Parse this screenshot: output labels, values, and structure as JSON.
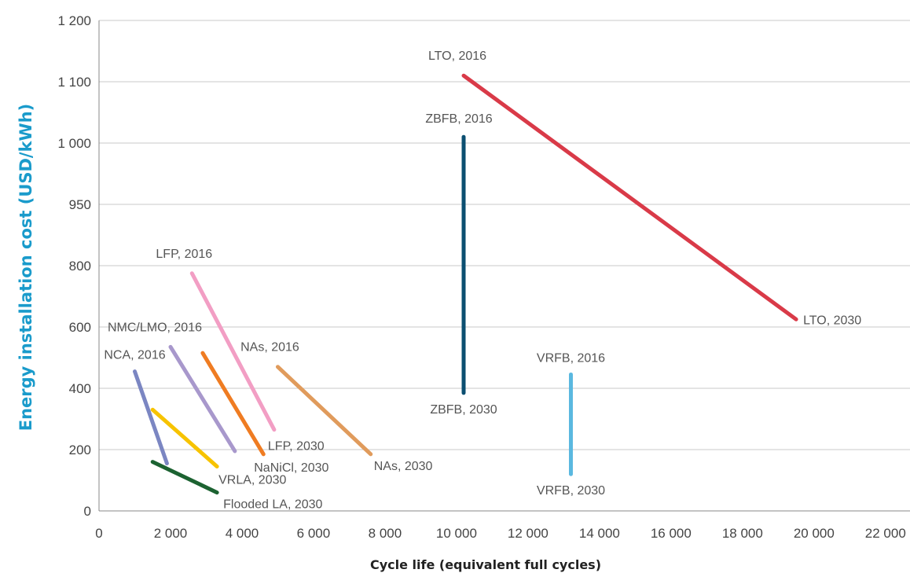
{
  "chart_data": {
    "type": "line",
    "title": "",
    "xlabel": "Cycle life (equivalent full cycles)",
    "ylabel": "Energy installation cost (USD/kWh)",
    "xlim": [
      0,
      22000
    ],
    "y_ticks": [
      0,
      200,
      400,
      600,
      800,
      950,
      1000,
      1100,
      1200
    ],
    "y_tick_labels": [
      "0",
      "200",
      "400",
      "600",
      "800",
      "950",
      "1 000",
      "1 100",
      "1 200"
    ],
    "x_ticks": [
      0,
      2000,
      4000,
      6000,
      8000,
      10000,
      12000,
      14000,
      16000,
      18000,
      20000,
      22000
    ],
    "x_tick_labels": [
      "0",
      "2 000",
      "4 000",
      "6 000",
      "8 000",
      "10 000",
      "12 000",
      "14 000",
      "16 000",
      "18 000",
      "20 000",
      "22 000"
    ],
    "grid": true,
    "series": [
      {
        "key": "lto",
        "color": "#d93a48",
        "start_label": "LTO, 2016",
        "end_label": "LTO, 2030",
        "x": [
          10200,
          19500
        ],
        "y": [
          1110,
          625
        ]
      },
      {
        "key": "zbfb",
        "color": "#0b4f71",
        "start_label": "ZBFB, 2016",
        "end_label": "ZBFB, 2030",
        "x": [
          10200,
          10200
        ],
        "y": [
          1010,
          385
        ]
      },
      {
        "key": "vrfb",
        "color": "#5ab8e0",
        "start_label": "VRFB, 2016",
        "end_label": "VRFB, 2030",
        "x": [
          13200,
          13200
        ],
        "y": [
          445,
          120
        ]
      },
      {
        "key": "nas",
        "color": "#e09b5c",
        "start_label": "NAs, 2016",
        "end_label": "NAs, 2030",
        "x": [
          5000,
          7600
        ],
        "y": [
          470,
          185
        ]
      },
      {
        "key": "lfp",
        "color": "#f29ec4",
        "start_label": "LFP, 2016",
        "end_label": "LFP, 2030",
        "x": [
          2600,
          4900
        ],
        "y": [
          775,
          265
        ]
      },
      {
        "key": "nanicl",
        "color": "#ef7c22",
        "start_label": "",
        "end_label": "NaNiCl, 2030",
        "x": [
          2900,
          4600
        ],
        "y": [
          515,
          185
        ]
      },
      {
        "key": "nmc",
        "color": "#a898cc",
        "start_label": "NMC/LMO, 2016",
        "end_label": "",
        "x": [
          2000,
          3800
        ],
        "y": [
          535,
          195
        ]
      },
      {
        "key": "nca",
        "color": "#7b86c2",
        "start_label": "NCA, 2016",
        "end_label": "",
        "x": [
          1000,
          1900
        ],
        "y": [
          455,
          155
        ]
      },
      {
        "key": "vrla",
        "color": "#f7c300",
        "start_label": "",
        "end_label": "VRLA, 2030",
        "x": [
          1500,
          3300
        ],
        "y": [
          330,
          145
        ]
      },
      {
        "key": "flooded",
        "color": "#1c6231",
        "start_label": "",
        "end_label": "Flooded LA, 2030",
        "x": [
          1500,
          3300
        ],
        "y": [
          160,
          60
        ]
      }
    ]
  }
}
